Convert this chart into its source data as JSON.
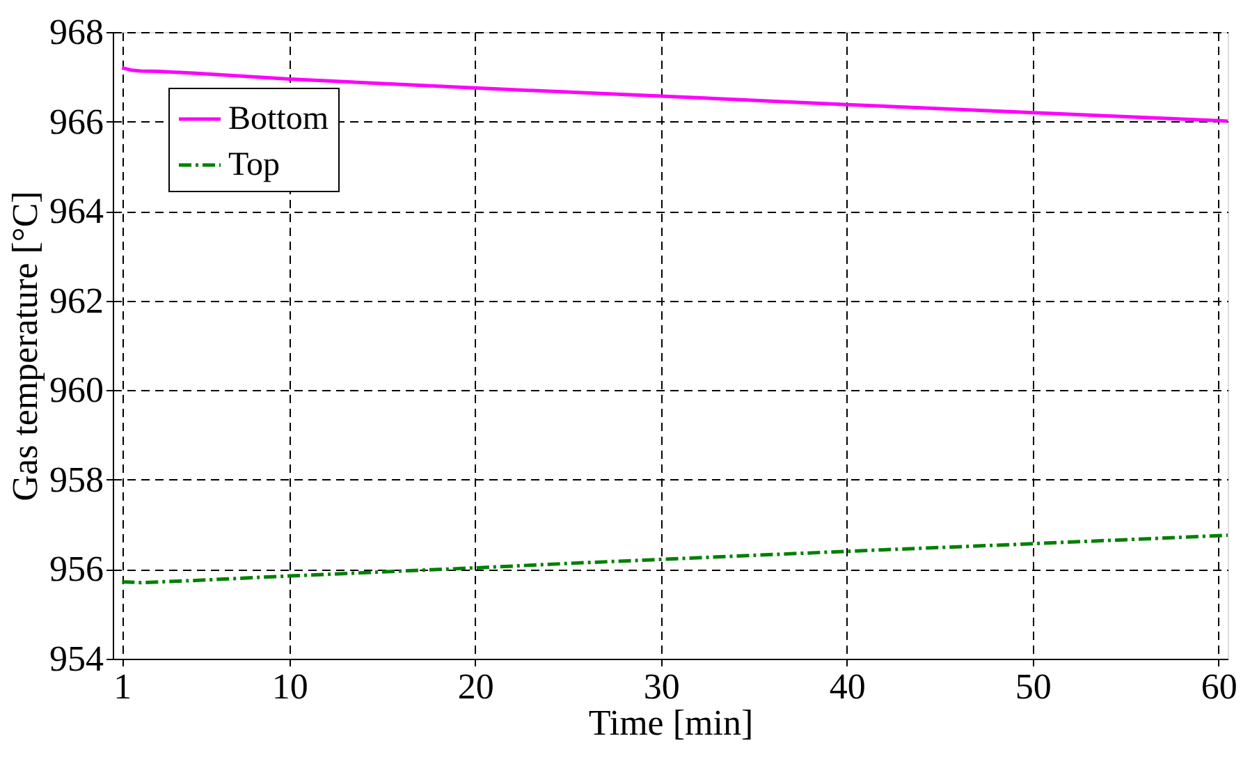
{
  "chart_data": {
    "type": "line",
    "xlabel": "Time [min]",
    "ylabel": "Gas temperature [°C]",
    "xlim": [
      0.5,
      60.5
    ],
    "xticks": [
      1,
      10,
      20,
      30,
      40,
      50,
      60
    ],
    "ylim": [
      954,
      968
    ],
    "yticks": [
      954,
      956,
      958,
      960,
      962,
      964,
      966,
      968
    ],
    "grid": true,
    "legend": "top left",
    "marker": "none",
    "series": [
      {
        "name": "Bottom",
        "color": "#ff00ff",
        "line_style": "solid",
        "x": [
          1,
          1.5,
          2,
          3,
          5,
          10,
          20,
          30,
          40,
          50,
          60,
          60.5
        ],
        "values": [
          967.2,
          967.15,
          967.13,
          967.12,
          967.08,
          966.95,
          966.75,
          966.57,
          966.38,
          966.2,
          966.02,
          966.01
        ]
      },
      {
        "name": "Top",
        "color": "#008000",
        "line_style": "dashdot",
        "x": [
          1,
          2,
          5,
          10,
          15,
          20,
          25,
          30,
          40,
          50,
          60,
          60.5
        ],
        "values": [
          955.72,
          955.7,
          955.75,
          955.85,
          955.94,
          956.03,
          956.13,
          956.22,
          956.4,
          956.57,
          956.75,
          956.76
        ]
      }
    ]
  }
}
